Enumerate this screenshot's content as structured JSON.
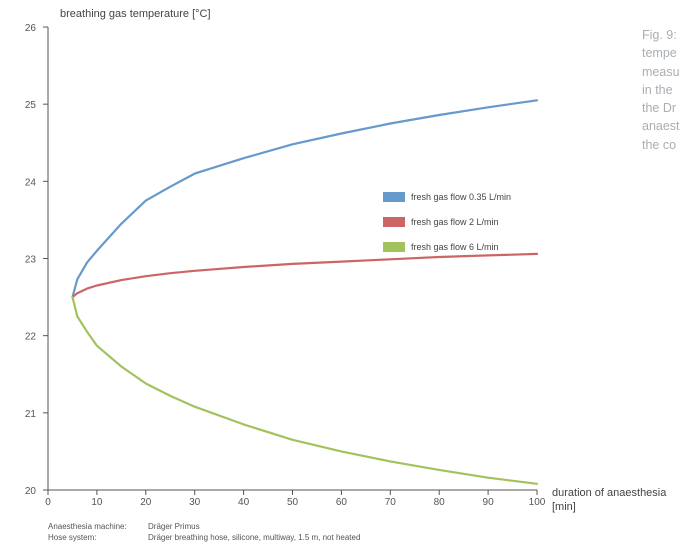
{
  "caption_lines": [
    "Fig. 9:",
    "tempe",
    "measu",
    "in the",
    "the Dr",
    "anaest",
    "the co"
  ],
  "doc_id": "D-44245-2015",
  "footnotes": [
    {
      "label": "Anaesthesia machine:",
      "value": "Dräger Primus"
    },
    {
      "label": "Hose system:",
      "value": "Dräger breathing hose, silicone, multiway, 1.5 m, not heated"
    }
  ],
  "chart_data": {
    "type": "line",
    "ylabel": "breathing gas temperature [°C]",
    "xlabel": "duration of anaesthesia",
    "xunit": "[min]",
    "xlim": [
      0,
      100
    ],
    "ylim": [
      20,
      26
    ],
    "xticks": [
      0,
      10,
      20,
      30,
      40,
      50,
      60,
      70,
      80,
      90,
      100
    ],
    "yticks": [
      20,
      21,
      22,
      23,
      24,
      25,
      26
    ],
    "grid": false,
    "legend_position": "center-right",
    "series": [
      {
        "name": "fresh gas flow 0.35 L/min",
        "color": "#6699cc",
        "x": [
          5,
          6,
          8,
          10,
          15,
          20,
          25,
          30,
          40,
          50,
          60,
          70,
          80,
          90,
          100
        ],
        "y": [
          22.5,
          22.73,
          22.95,
          23.1,
          23.45,
          23.75,
          23.93,
          24.1,
          24.3,
          24.48,
          24.62,
          24.75,
          24.86,
          24.96,
          25.05
        ]
      },
      {
        "name": "fresh gas flow 2 L/min",
        "color": "#cc6666",
        "x": [
          5,
          6,
          8,
          10,
          15,
          20,
          25,
          30,
          40,
          50,
          60,
          70,
          80,
          90,
          100
        ],
        "y": [
          22.5,
          22.55,
          22.61,
          22.65,
          22.72,
          22.77,
          22.81,
          22.84,
          22.89,
          22.93,
          22.96,
          22.99,
          23.02,
          23.04,
          23.06
        ]
      },
      {
        "name": "fresh gas flow 6 L/min",
        "color": "#a3c25d",
        "x": [
          5,
          6,
          8,
          10,
          15,
          20,
          25,
          30,
          40,
          50,
          60,
          70,
          80,
          90,
          100
        ],
        "y": [
          22.5,
          22.25,
          22.05,
          21.87,
          21.6,
          21.38,
          21.22,
          21.08,
          20.85,
          20.65,
          20.5,
          20.37,
          20.26,
          20.16,
          20.08
        ]
      }
    ]
  }
}
